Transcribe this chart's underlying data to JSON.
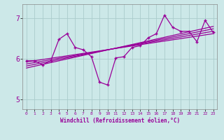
{
  "xlabel": "Windchill (Refroidissement éolien,°C)",
  "background_color": "#cce8e8",
  "line_color": "#990099",
  "grid_color": "#aacccc",
  "xlim": [
    -0.5,
    23.5
  ],
  "ylim": [
    4.75,
    7.35
  ],
  "yticks": [
    5,
    6,
    7
  ],
  "xticks": [
    0,
    1,
    2,
    3,
    4,
    5,
    6,
    7,
    8,
    9,
    10,
    11,
    12,
    13,
    14,
    15,
    16,
    17,
    18,
    19,
    20,
    21,
    22,
    23
  ],
  "y_main": [
    5.95,
    5.95,
    5.85,
    5.95,
    6.48,
    6.62,
    6.28,
    6.22,
    6.05,
    5.42,
    5.35,
    6.02,
    6.05,
    6.28,
    6.32,
    6.52,
    6.62,
    7.08,
    6.78,
    6.68,
    6.68,
    6.42,
    6.95,
    6.65
  ],
  "trend_lines": [
    {
      "start_x": 0,
      "start_y": 5.92,
      "end_x": 23,
      "end_y": 6.62
    },
    {
      "start_x": 0,
      "start_y": 5.87,
      "end_x": 23,
      "end_y": 6.68
    },
    {
      "start_x": 0,
      "start_y": 5.82,
      "end_x": 23,
      "end_y": 6.74
    },
    {
      "start_x": 0,
      "start_y": 5.77,
      "end_x": 23,
      "end_y": 6.8
    }
  ]
}
